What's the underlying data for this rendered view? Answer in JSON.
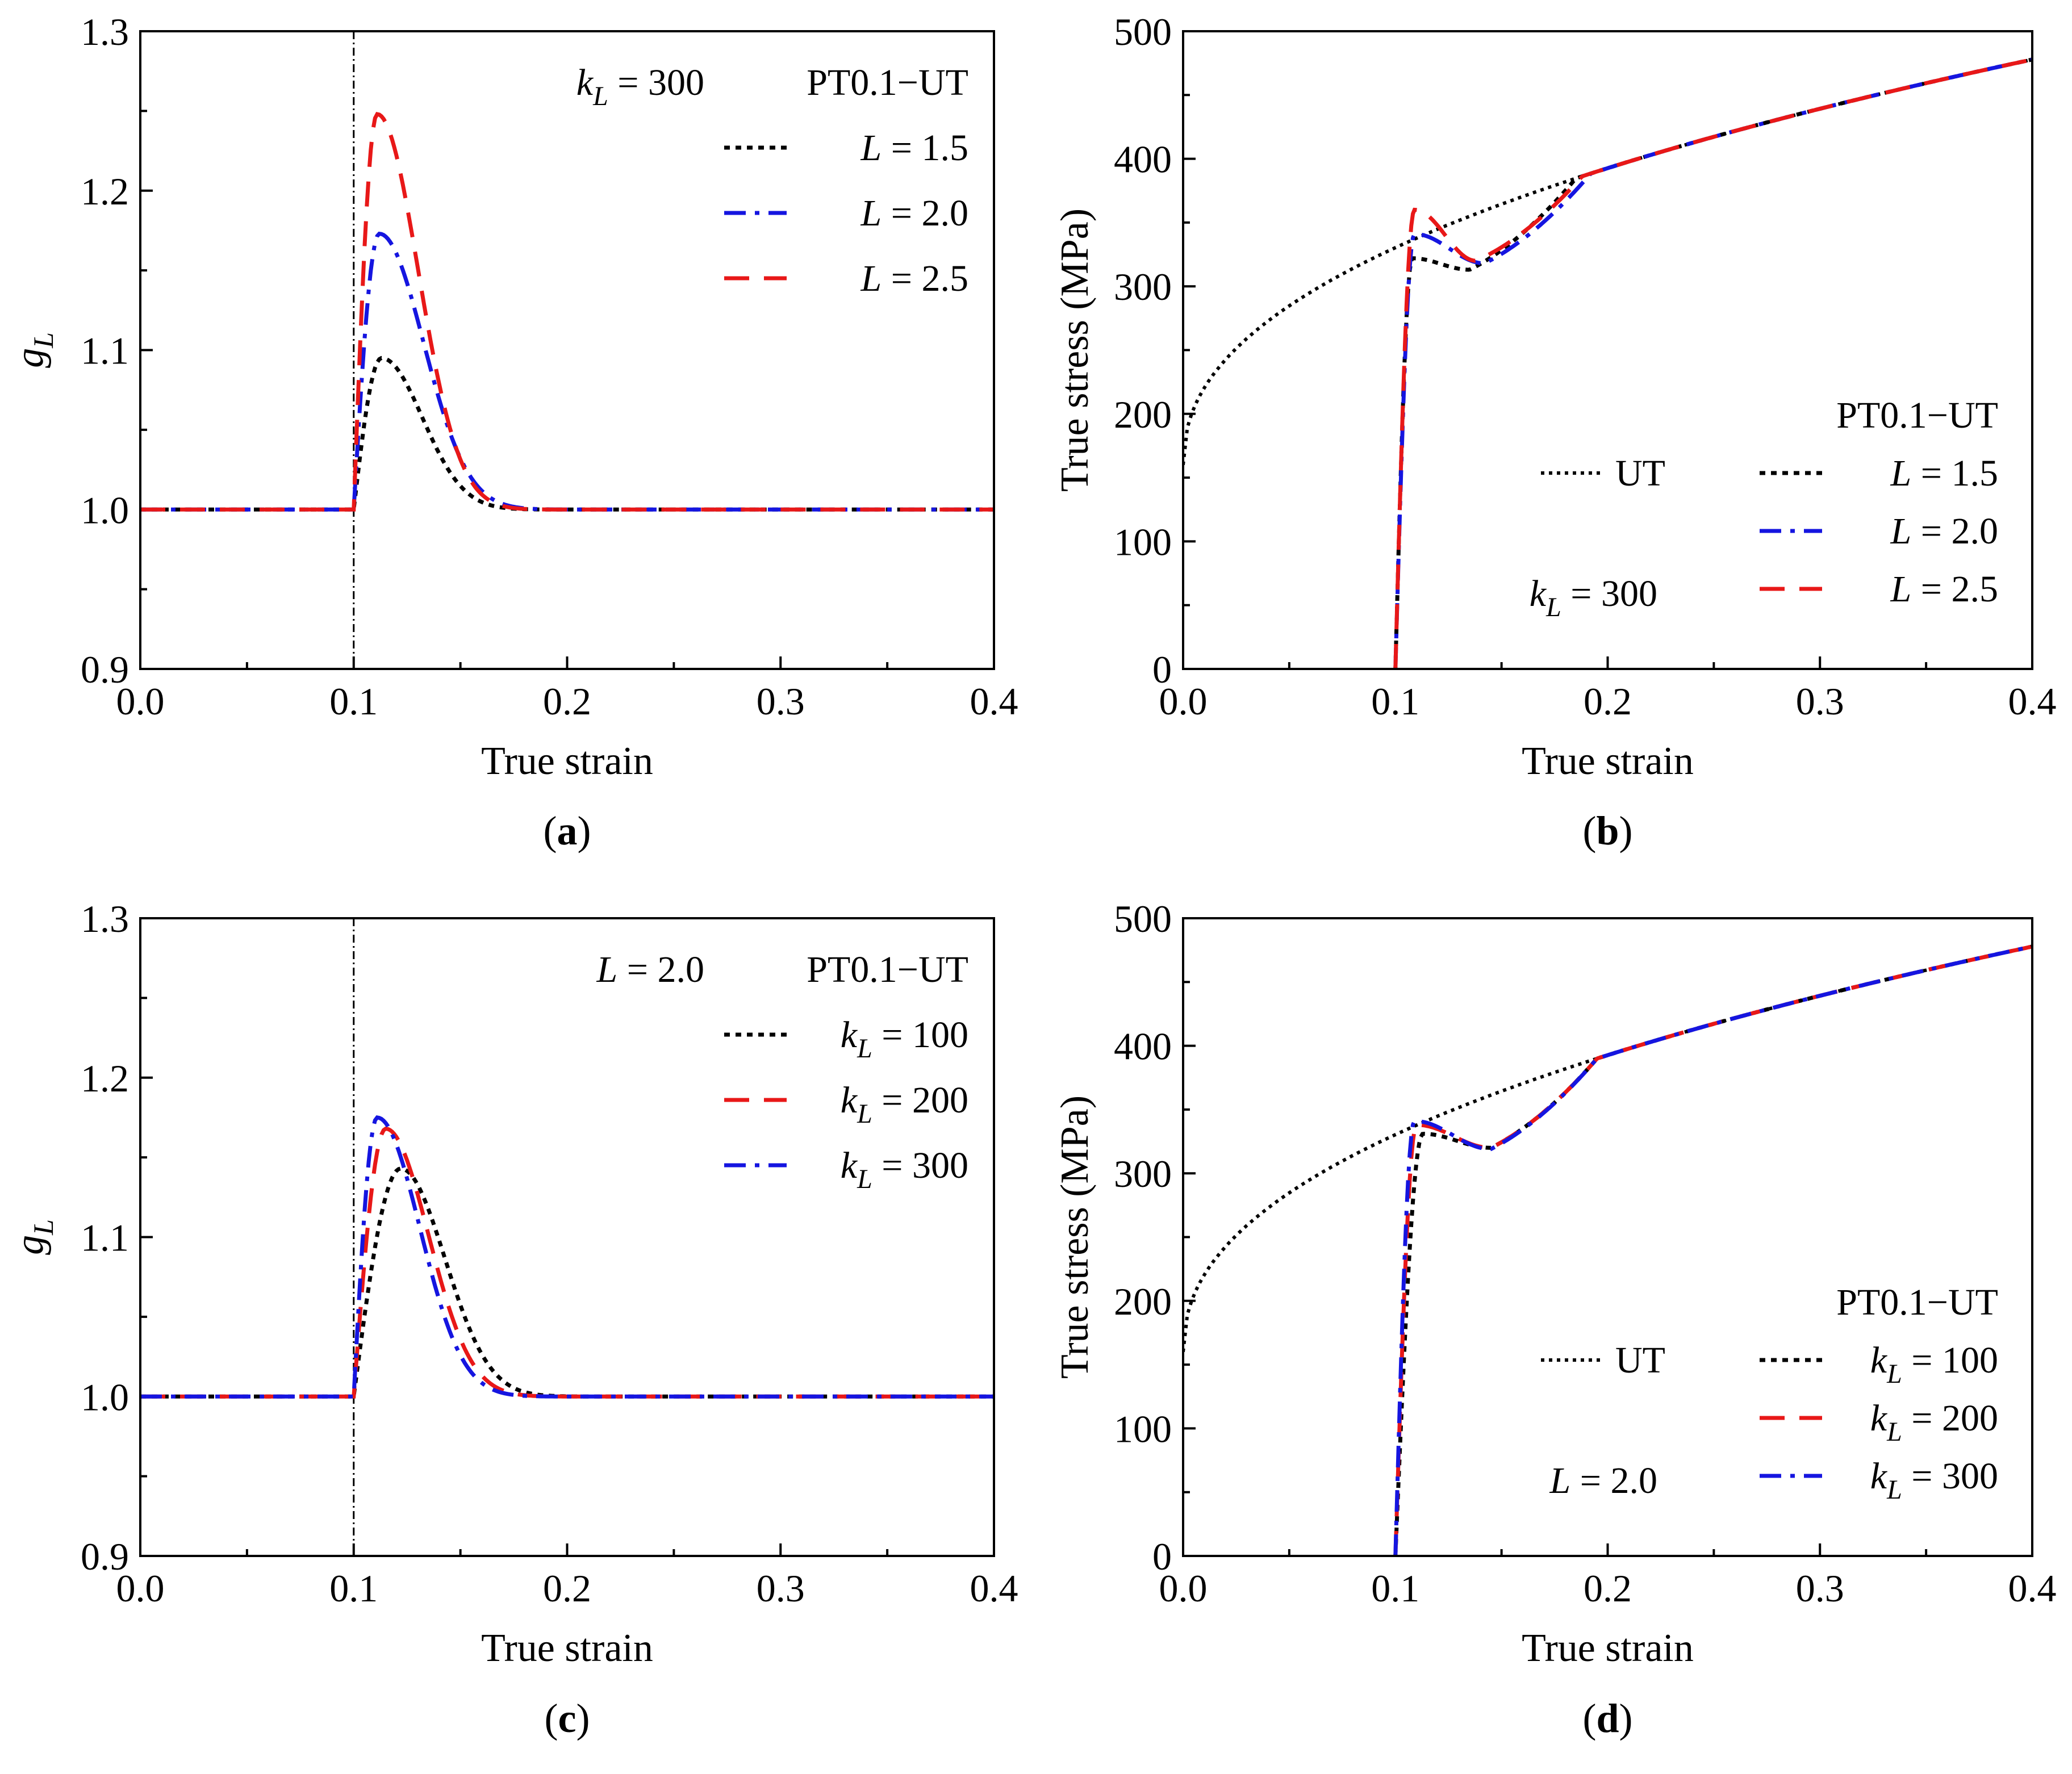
{
  "colors": {
    "black": "#000000",
    "blue": "#1515e0",
    "red": "#e81818"
  },
  "chart_data": [
    {
      "id": "a",
      "type": "line",
      "panel_label": "a",
      "xlabel": "True strain",
      "ylabel": "g",
      "ylabel_sub": "L",
      "xlim": [
        0.0,
        0.4
      ],
      "ylim": [
        0.9,
        1.3
      ],
      "xticks": [
        0.0,
        0.1,
        0.2,
        0.3,
        0.4
      ],
      "xtick_labels": [
        "0.0",
        "0.1",
        "0.2",
        "0.3",
        "0.4"
      ],
      "yticks": [
        0.9,
        1.0,
        1.1,
        1.2,
        1.3
      ],
      "ytick_labels": [
        "0.9",
        "1.0",
        "1.1",
        "1.2",
        "1.3"
      ],
      "vline_x": 0.1,
      "legend_title": "PT0.1−UT",
      "legend_entries": [
        {
          "prefix": "",
          "var": "L",
          "sub": "",
          "rest": " = 1.5",
          "series": "L15"
        },
        {
          "prefix": "",
          "var": "L",
          "sub": "",
          "rest": " = 2.0",
          "series": "L20"
        },
        {
          "prefix": "",
          "var": "L",
          "sub": "",
          "rest": " = 2.5",
          "series": "L25"
        }
      ],
      "annotation": {
        "var": "k",
        "sub": "L",
        "rest": " = 300"
      },
      "series": [
        {
          "name": "L15",
          "label": "L = 1.5",
          "color": "#000000",
          "style": "dot",
          "peak_x": 0.113,
          "peak_y": 1.095,
          "decay": 0.025
        },
        {
          "name": "L20",
          "label": "L = 2.0",
          "color": "#1515e0",
          "style": "dashdot",
          "peak_x": 0.112,
          "peak_y": 1.173,
          "decay": 0.027
        },
        {
          "name": "L25",
          "label": "L = 2.5",
          "color": "#e81818",
          "style": "dash",
          "peak_x": 0.111,
          "peak_y": 1.248,
          "decay": 0.025
        }
      ]
    },
    {
      "id": "b",
      "type": "line",
      "panel_label": "b",
      "xlabel": "True strain",
      "ylabel": "True stress (MPa)",
      "xlim": [
        0.0,
        0.4
      ],
      "ylim": [
        0,
        500
      ],
      "xticks": [
        0.0,
        0.1,
        0.2,
        0.3,
        0.4
      ],
      "xtick_labels": [
        "0.0",
        "0.1",
        "0.2",
        "0.3",
        "0.4"
      ],
      "yticks": [
        0,
        100,
        200,
        300,
        400,
        500
      ],
      "ytick_labels": [
        "0",
        "100",
        "200",
        "300",
        "400",
        "500"
      ],
      "legend_title": "PT0.1−UT",
      "ut_label": "UT",
      "legend_entries": [
        {
          "prefix": "",
          "var": "L",
          "sub": "",
          "rest": " = 1.5",
          "series": "L15"
        },
        {
          "prefix": "",
          "var": "L",
          "sub": "",
          "rest": " = 2.0",
          "series": "L20"
        },
        {
          "prefix": "",
          "var": "L",
          "sub": "",
          "rest": " = 2.5",
          "series": "L25"
        }
      ],
      "annotation": {
        "var": "k",
        "sub": "L",
        "rest": " = 300"
      },
      "ut_curve": {
        "sigma0": 160,
        "coef": 480,
        "exp": 0.45
      },
      "series": [
        {
          "name": "L15",
          "label": "L = 1.5",
          "color": "#000000",
          "style": "dot",
          "peak_x": 0.108,
          "peak_y": 322,
          "trough_x": 0.135,
          "trough_y": 313
        },
        {
          "name": "L20",
          "label": "L = 2.0",
          "color": "#1515e0",
          "style": "dashdot",
          "peak_x": 0.109,
          "peak_y": 341,
          "trough_x": 0.142,
          "trough_y": 318
        },
        {
          "name": "L25",
          "label": "L = 2.5",
          "color": "#e81818",
          "style": "dash",
          "peak_x": 0.109,
          "peak_y": 360,
          "trough_x": 0.138,
          "trough_y": 320
        }
      ]
    },
    {
      "id": "c",
      "type": "line",
      "panel_label": "c",
      "xlabel": "True strain",
      "ylabel": "g",
      "ylabel_sub": "L",
      "xlim": [
        0.0,
        0.4
      ],
      "ylim": [
        0.9,
        1.3
      ],
      "xticks": [
        0.0,
        0.1,
        0.2,
        0.3,
        0.4
      ],
      "xtick_labels": [
        "0.0",
        "0.1",
        "0.2",
        "0.3",
        "0.4"
      ],
      "yticks": [
        0.9,
        1.0,
        1.1,
        1.2,
        1.3
      ],
      "ytick_labels": [
        "0.9",
        "1.0",
        "1.1",
        "1.2",
        "1.3"
      ],
      "vline_x": 0.1,
      "legend_title": "PT0.1−UT",
      "legend_entries": [
        {
          "prefix": "",
          "var": "k",
          "sub": "L",
          "rest": " = 100",
          "series": "k100"
        },
        {
          "prefix": "",
          "var": "k",
          "sub": "L",
          "rest": " = 200",
          "series": "k200"
        },
        {
          "prefix": "",
          "var": "k",
          "sub": "L",
          "rest": " = 300",
          "series": "k300"
        }
      ],
      "annotation": {
        "var": "L",
        "sub": "",
        "rest": " = 2.0"
      },
      "series": [
        {
          "name": "k100",
          "label": "kL = 100",
          "color": "#000000",
          "style": "dot",
          "peak_x": 0.122,
          "peak_y": 1.143,
          "decay": 0.027
        },
        {
          "name": "k200",
          "label": "kL = 200",
          "color": "#e81818",
          "style": "dash",
          "peak_x": 0.115,
          "peak_y": 1.168,
          "decay": 0.026
        },
        {
          "name": "k300",
          "label": "kL = 300",
          "color": "#1515e0",
          "style": "dashdot",
          "peak_x": 0.111,
          "peak_y": 1.175,
          "decay": 0.026
        }
      ]
    },
    {
      "id": "d",
      "type": "line",
      "panel_label": "d",
      "xlabel": "True strain",
      "ylabel": "True stress (MPa)",
      "xlim": [
        0.0,
        0.4
      ],
      "ylim": [
        0,
        500
      ],
      "xticks": [
        0.0,
        0.1,
        0.2,
        0.3,
        0.4
      ],
      "xtick_labels": [
        "0.0",
        "0.1",
        "0.2",
        "0.3",
        "0.4"
      ],
      "yticks": [
        0,
        100,
        200,
        300,
        400,
        500
      ],
      "ytick_labels": [
        "0",
        "100",
        "200",
        "300",
        "400",
        "500"
      ],
      "legend_title": "PT0.1−UT",
      "ut_label": "UT",
      "legend_entries": [
        {
          "prefix": "",
          "var": "k",
          "sub": "L",
          "rest": " = 100",
          "series": "k100"
        },
        {
          "prefix": "",
          "var": "k",
          "sub": "L",
          "rest": " = 200",
          "series": "k200"
        },
        {
          "prefix": "",
          "var": "k",
          "sub": "L",
          "rest": " = 300",
          "series": "k300"
        }
      ],
      "annotation": {
        "var": "L",
        "sub": "",
        "rest": " = 2.0"
      },
      "ut_curve": {
        "sigma0": 160,
        "coef": 480,
        "exp": 0.45
      },
      "series": [
        {
          "name": "k100",
          "label": "kL = 100",
          "color": "#000000",
          "style": "dot",
          "peak_x": 0.113,
          "peak_y": 331,
          "trough_x": 0.145,
          "trough_y": 320
        },
        {
          "name": "k200",
          "label": "kL = 200",
          "color": "#e81818",
          "style": "dash",
          "peak_x": 0.11,
          "peak_y": 338,
          "trough_x": 0.145,
          "trough_y": 320
        },
        {
          "name": "k300",
          "label": "kL = 300",
          "color": "#1515e0",
          "style": "dashdot",
          "peak_x": 0.109,
          "peak_y": 341,
          "trough_x": 0.145,
          "trough_y": 319
        }
      ]
    }
  ]
}
